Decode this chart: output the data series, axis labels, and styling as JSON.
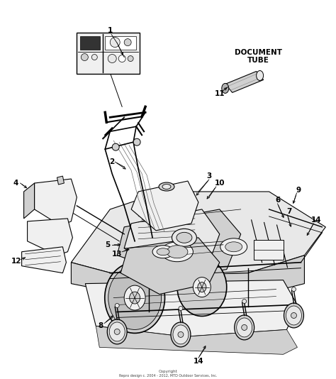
{
  "background_color": "#ffffff",
  "fig_width": 4.74,
  "fig_height": 5.34,
  "dpi": 100,
  "footer_line1": "Copyright",
  "footer_line2": "Repro design c. 2004 - 2012, MTD Outdoor Services, Inc.",
  "document_tube_label": "DOCUMENT\nTUBE",
  "gray_fill": "#e8e8e8",
  "dark_gray": "#b0b0b0",
  "mid_gray": "#d0d0d0",
  "light_gray": "#f0f0f0",
  "label_fontsize": 7.5
}
